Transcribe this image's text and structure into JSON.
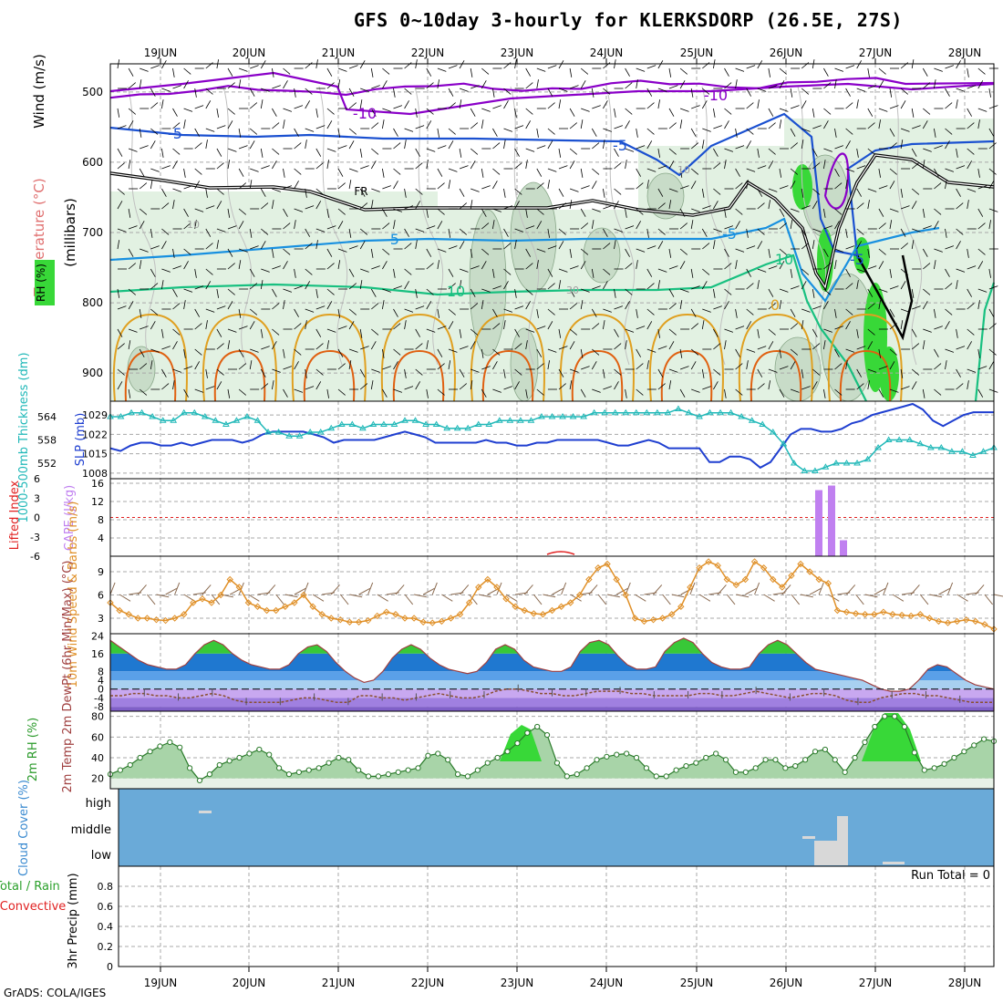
{
  "title": "GFS 0~10day 3-hourly for KLERKSDORP (26.5E, 27S)",
  "credit": "GrADS: COLA/IGES",
  "dates": [
    "19JUN",
    "20JUN",
    "21JUN",
    "22JUN",
    "23JUN",
    "24JUN",
    "25JUN",
    "26JUN",
    "27JUN",
    "28JUN"
  ],
  "colors": {
    "temp_cold": "#8a00c8",
    "temp_5": "#1a50d0",
    "temp_neg5": "#1890e0",
    "temp_10": "#18c080",
    "temp_warm": "#e0a020",
    "temp_hot": "#e06010",
    "freezing": "#000000",
    "slp": "#1f3fd0",
    "thickness": "#20b8b8",
    "cape": "#c080f0",
    "lifted_ref": "#e02020",
    "wind": "#e09028",
    "rh_fill": "#38d838",
    "cloud_bg": "#6aaad8",
    "cloud_fill": "#d8d8d8"
  },
  "chart_data": [
    {
      "panel": "upper-air",
      "type": "contour",
      "ylabel": "(millibars)",
      "yticks": [
        500,
        600,
        700,
        800,
        900
      ],
      "legend_labels": [
        "Wind (m/s)",
        "Temperature (°C)",
        "RH (%)"
      ],
      "contour_labels": [
        "-10",
        "-5",
        "-5",
        "FR",
        "-5",
        "-5",
        "10",
        "10",
        "0",
        "-10",
        "10",
        "-5",
        "30",
        "10"
      ]
    },
    {
      "panel": "slp-thickness",
      "type": "line",
      "ylabel_left": "1000-500mb Thickness (dm)",
      "ylabel_right": "SLP (mb)",
      "yticks_thickness": [
        552,
        558,
        564
      ],
      "yticks_slp": [
        1008,
        1015,
        1022,
        1029
      ],
      "series": [
        {
          "name": "SLP (mb)",
          "values": [
            1017,
            1016,
            1018,
            1019,
            1019,
            1018,
            1018,
            1019,
            1018,
            1019,
            1020,
            1020,
            1020,
            1019,
            1020,
            1022,
            1023,
            1023,
            1023,
            1023,
            1022,
            1021,
            1019,
            1020,
            1020,
            1020,
            1020,
            1021,
            1022,
            1023,
            1022,
            1021,
            1019,
            1019,
            1019,
            1019,
            1019,
            1020,
            1019,
            1019,
            1018,
            1018,
            1019,
            1019,
            1020,
            1020,
            1020,
            1020,
            1020,
            1019,
            1018,
            1018,
            1019,
            1020,
            1019,
            1017,
            1017,
            1017,
            1017,
            1012,
            1012,
            1014,
            1014,
            1013,
            1010,
            1012,
            1017,
            1022,
            1024,
            1024,
            1023,
            1023,
            1024,
            1026,
            1027,
            1029,
            1030,
            1031,
            1032,
            1033,
            1031,
            1027,
            1025,
            1027,
            1029,
            1030,
            1030,
            1030
          ]
        },
        {
          "name": "1000-500mb Thickness (dm)",
          "values": [
            564,
            564,
            565,
            565,
            564,
            563,
            563,
            565,
            565,
            564,
            563,
            562,
            563,
            564,
            563,
            560,
            560,
            559,
            559,
            560,
            560,
            561,
            562,
            562,
            561,
            562,
            562,
            562,
            563,
            563,
            562,
            562,
            561,
            561,
            561,
            562,
            562,
            563,
            563,
            563,
            563,
            564,
            564,
            564,
            564,
            564,
            565,
            565,
            565,
            565,
            565,
            565,
            565,
            565,
            566,
            565,
            564,
            565,
            565,
            565,
            564,
            563,
            562,
            560,
            557,
            552,
            550,
            550,
            551,
            552,
            552,
            552,
            553,
            556,
            558,
            558,
            558,
            557,
            556,
            556,
            555,
            555,
            554,
            555,
            556
          ]
        }
      ]
    },
    {
      "panel": "cape-lifted",
      "type": "bar",
      "ylabel_left": "Lifted Index",
      "ylabel_right": "CAPE (J/kg)",
      "yticks_cape": [
        4,
        8,
        12,
        16
      ],
      "yticks_lifted": [
        -6,
        -3,
        0,
        3,
        6
      ],
      "categories": [
        "26JUN 09Z",
        "26JUN 12Z",
        "26JUN 15Z"
      ],
      "series": [
        {
          "name": "CAPE (J/kg)",
          "values": [
            14.5,
            15.5,
            3.5
          ]
        }
      ]
    },
    {
      "panel": "wind-10m",
      "type": "line",
      "ylabel": "10m Wind Speed & Barbs (m/s)",
      "yticks": [
        3,
        6,
        9
      ],
      "series": [
        {
          "name": "10m Wind Speed (m/s)",
          "values": [
            5,
            4,
            3.5,
            3,
            3,
            2.8,
            2.7,
            3,
            3.5,
            5,
            5.5,
            5,
            6,
            8,
            7,
            5,
            4.5,
            4,
            4,
            4.5,
            5,
            6,
            4.5,
            3.5,
            3,
            2.8,
            2.5,
            2.5,
            2.7,
            3.3,
            3.8,
            3.5,
            3,
            3,
            2.5,
            2.4,
            2.6,
            3,
            3.5,
            5,
            7,
            8,
            7,
            5.5,
            4.5,
            4,
            3.6,
            3.5,
            4,
            4.5,
            5,
            6,
            8,
            9.5,
            10,
            8,
            6,
            3,
            2.6,
            2.8,
            3,
            3.5,
            4.5,
            7,
            9.5,
            10.3,
            9.8,
            8,
            7.3,
            8,
            10.3,
            9.5,
            8,
            7,
            8.5,
            10,
            9,
            8,
            7.5,
            4,
            3.8,
            3.6,
            3.5,
            3.5,
            3.8,
            3.5,
            3.4,
            3.3,
            3.5,
            3,
            2.6,
            2.4,
            2.6,
            2.8,
            2.6,
            2.2,
            1.6
          ]
        }
      ]
    },
    {
      "panel": "temperature-2m",
      "type": "area",
      "ylabel": "2m Temp 2m DewPt (6hr Min/Max) (°C)",
      "yticks": [
        -8,
        -4,
        0,
        4,
        8,
        16,
        24
      ],
      "series": [
        {
          "name": "2m Temp (°C)",
          "values": [
            22,
            19,
            16,
            13,
            11,
            10,
            9,
            9,
            11,
            16,
            20,
            22,
            20,
            16,
            13,
            11,
            10,
            9,
            9,
            11,
            16,
            19,
            20,
            17,
            12,
            8,
            5,
            3,
            4,
            8,
            14,
            18,
            20,
            18,
            14,
            11,
            9,
            8,
            7,
            8,
            12,
            18,
            20,
            18,
            13,
            10,
            9,
            8,
            8,
            10,
            17,
            21,
            22,
            20,
            15,
            11,
            9,
            9,
            10,
            17,
            21,
            23,
            21,
            16,
            12,
            10,
            9,
            9,
            10,
            16,
            20,
            22,
            20,
            16,
            12,
            9,
            8,
            7,
            6,
            5,
            4,
            2,
            0,
            -1,
            -1,
            0,
            4,
            9,
            11,
            10,
            7,
            4,
            2,
            1,
            0
          ]
        },
        {
          "name": "2m DewPt (°C)",
          "values": [
            -3,
            -3,
            -2,
            -2,
            -3,
            -3,
            -4,
            -4,
            -3,
            -2,
            -3,
            -5,
            -6,
            -6,
            -6,
            -6,
            -5,
            -4,
            -4,
            -5,
            -6,
            -6,
            -3,
            -3,
            -4,
            -4,
            -5,
            -4,
            -3,
            -2,
            -3,
            -4,
            -4,
            -3,
            -1,
            0,
            0,
            -1,
            -2,
            -2,
            -3,
            -3,
            -2,
            -1,
            -1,
            -1,
            -2,
            -2,
            -3,
            -3,
            -3,
            -3,
            -2,
            -2,
            -3,
            -3,
            -2,
            -1,
            -2,
            -3,
            -4,
            -3,
            -2,
            -2,
            -3,
            -5,
            -6,
            -6,
            -4,
            -3,
            -2,
            -2,
            -3,
            -3,
            -4,
            -5,
            -6,
            -6,
            -6
          ]
        }
      ]
    },
    {
      "panel": "rh-2m",
      "type": "area",
      "ylabel": "2m RH (%)",
      "yticks": [
        20,
        40,
        60,
        80
      ],
      "series": [
        {
          "name": "2m RH (%)",
          "values": [
            24,
            28,
            33,
            40,
            46,
            51,
            55,
            50,
            30,
            18,
            24,
            33,
            37,
            40,
            44,
            48,
            43,
            30,
            24,
            26,
            28,
            30,
            35,
            40,
            38,
            28,
            22,
            22,
            24,
            26,
            28,
            30,
            42,
            44,
            38,
            24,
            22,
            28,
            35,
            40,
            46,
            54,
            64,
            70,
            62,
            35,
            22,
            24,
            30,
            38,
            41,
            43,
            44,
            40,
            30,
            22,
            22,
            28,
            32,
            35,
            40,
            44,
            38,
            26,
            26,
            30,
            38,
            38,
            30,
            32,
            38,
            46,
            48,
            38,
            26,
            40,
            55,
            70,
            80,
            80,
            70,
            45,
            28,
            30,
            34,
            40,
            46,
            52,
            58,
            56
          ]
        }
      ]
    },
    {
      "panel": "cloud-cover",
      "type": "bar",
      "ylabel": "Cloud Cover (%)",
      "yticks": [
        "low",
        "middle",
        "high"
      ],
      "categories": [
        "19JUN 12Z high",
        "26JUN 03Z middle",
        "26JUN 06Z low",
        "26JUN 09Z low",
        "26JUN 12Z middle",
        "26JUN 15Z low",
        "27JUN 03Z low"
      ],
      "series": [
        {
          "name": "Cloud Cover (%)",
          "values": [
            30,
            20,
            100,
            100,
            100,
            100,
            30
          ]
        }
      ]
    },
    {
      "panel": "precip-3hr",
      "type": "bar",
      "ylabel": "3hr Precip (mm)",
      "legend_labels": [
        "Total / Rain",
        "Convective"
      ],
      "yticks": [
        0,
        0.2,
        0.4,
        0.6,
        0.8
      ],
      "ylim": [
        0,
        1
      ],
      "run_total_label": "Run Total = 0",
      "series": [
        {
          "name": "3hr Precip (mm)",
          "values": []
        }
      ]
    }
  ]
}
